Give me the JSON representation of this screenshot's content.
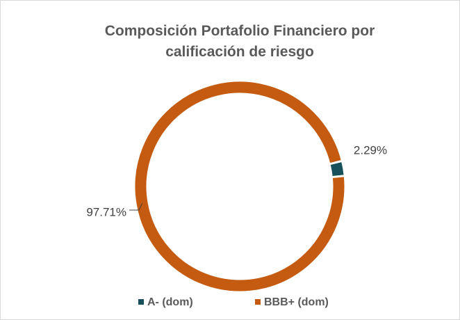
{
  "chart_data": {
    "type": "donut",
    "title": "Composición Portafolio Financiero por calificación de riesgo",
    "categories": [
      "A- (dom)",
      "BBB+ (dom)"
    ],
    "values": [
      2.29,
      97.71
    ],
    "value_labels": [
      "2.29%",
      "97.71%"
    ],
    "colors": [
      "#17505a",
      "#c55a11"
    ],
    "legend": "bottom"
  }
}
